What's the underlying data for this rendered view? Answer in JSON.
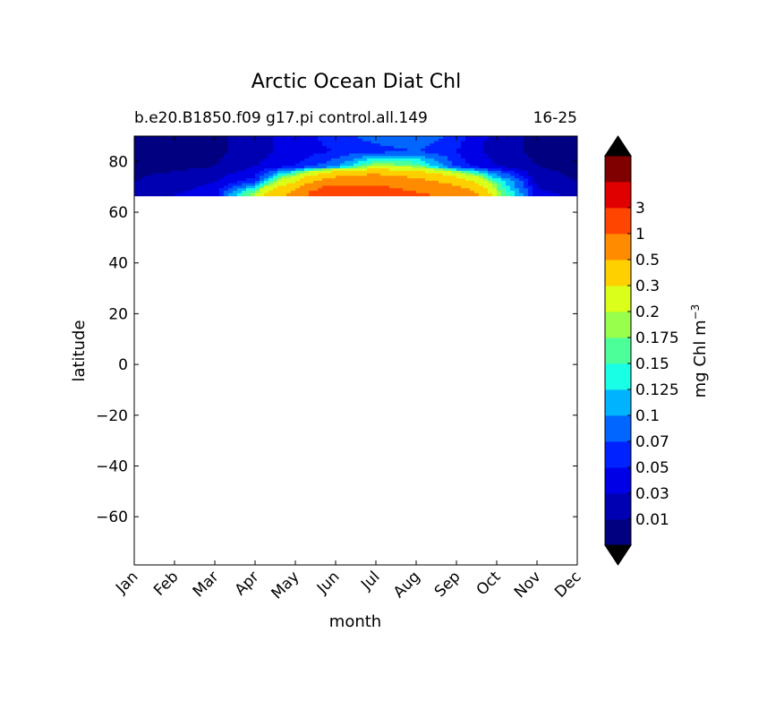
{
  "chart_data": {
    "type": "heatmap",
    "title": "Arctic Ocean Diat Chl",
    "subtitle_left": "b.e20.B1850.f09 g17.pi control.all.149",
    "subtitle_right": "16-25",
    "xlabel": "month",
    "ylabel": "latitude",
    "x_categories": [
      "Jan",
      "Feb",
      "Mar",
      "Apr",
      "May",
      "Jun",
      "Jul",
      "Aug",
      "Sep",
      "Oct",
      "Nov",
      "Dec"
    ],
    "y_ticks": [
      80,
      60,
      40,
      20,
      0,
      -20,
      -40,
      -60
    ],
    "ylim": [
      -79,
      90
    ],
    "data_latitude_range": [
      66.5,
      90
    ],
    "latitudes": [
      90,
      84,
      78,
      72,
      67
    ],
    "values": [
      [
        0.005,
        0.005,
        0.005,
        0.02,
        0.04,
        0.06,
        0.08,
        0.09,
        0.06,
        0.02,
        0.005,
        0.005
      ],
      [
        0.005,
        0.005,
        0.005,
        0.02,
        0.04,
        0.05,
        0.06,
        0.07,
        0.05,
        0.02,
        0.005,
        0.005
      ],
      [
        0.005,
        0.005,
        0.01,
        0.03,
        0.05,
        0.09,
        0.2,
        0.18,
        0.06,
        0.03,
        0.01,
        0.005
      ],
      [
        0.01,
        0.02,
        0.03,
        0.06,
        0.3,
        0.7,
        0.8,
        0.6,
        0.4,
        0.15,
        0.02,
        0.01
      ],
      [
        0.02,
        0.03,
        0.04,
        0.2,
        0.6,
        2,
        1.5,
        1.1,
        0.8,
        0.2,
        0.04,
        0.02
      ]
    ],
    "colorbar": {
      "label": "mg Chl m",
      "label_superscript": "−3",
      "levels": [
        0.01,
        0.03,
        0.05,
        0.07,
        0.1,
        0.125,
        0.15,
        0.175,
        0.2,
        0.3,
        0.5,
        1,
        3
      ],
      "tick_labels": [
        "0.01",
        "0.03",
        "0.05",
        "0.07",
        "0.1",
        "0.125",
        "0.15",
        "0.175",
        "0.2",
        "0.3",
        "0.5",
        "1",
        "3"
      ],
      "extend": "both",
      "colors": [
        "#000080",
        "#0000b3",
        "#0000e6",
        "#0022ff",
        "#0066ff",
        "#00b3ff",
        "#19ffe6",
        "#4dff99",
        "#99ff4d",
        "#d9ff1a",
        "#ffd000",
        "#ff8c00",
        "#ff4500",
        "#e00000",
        "#800000"
      ],
      "under_color": "#000000",
      "over_color": "#000000"
    }
  }
}
